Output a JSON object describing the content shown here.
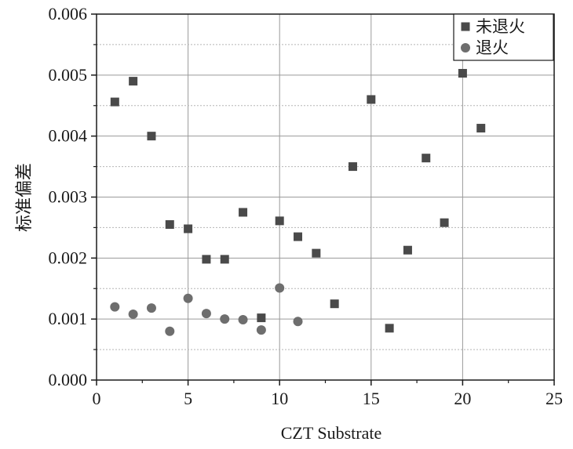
{
  "chart_data": {
    "type": "scatter",
    "title": "",
    "xlabel": "CZT Substrate",
    "ylabel": "标准偏差",
    "xlim": [
      0,
      25
    ],
    "ylim": [
      0,
      0.006
    ],
    "x_ticks": [
      0,
      5,
      10,
      15,
      20,
      25
    ],
    "x_tick_labels": [
      "0",
      "5",
      "10",
      "15",
      "20",
      "25"
    ],
    "y_ticks": [
      0,
      0.001,
      0.002,
      0.003,
      0.004,
      0.005,
      0.006
    ],
    "y_tick_labels": [
      "0.000",
      "0.001",
      "0.002",
      "0.003",
      "0.004",
      "0.005",
      "0.006"
    ],
    "grid": {
      "major": true,
      "minor_y_dotted": true
    },
    "legend_position": "top-right",
    "series": [
      {
        "name": "未退火",
        "marker": "square",
        "color": "#4a4a4a",
        "x": [
          1,
          2,
          3,
          4,
          5,
          6,
          7,
          8,
          9,
          10,
          11,
          12,
          13,
          14,
          15,
          16,
          17,
          18,
          19,
          20,
          21
        ],
        "y": [
          0.00456,
          0.0049,
          0.004,
          0.00255,
          0.00248,
          0.00198,
          0.00198,
          0.00275,
          0.00102,
          0.00261,
          0.00235,
          0.00208,
          0.00125,
          0.0035,
          0.0046,
          0.00085,
          0.00213,
          0.00364,
          0.00258,
          0.00503,
          0.00413
        ]
      },
      {
        "name": "退火",
        "marker": "circle",
        "color": "#6e6e6e",
        "x": [
          1,
          2,
          3,
          4,
          5,
          6,
          7,
          8,
          9,
          10,
          11
        ],
        "y": [
          0.0012,
          0.00108,
          0.00118,
          0.0008,
          0.00134,
          0.00109,
          0.001,
          0.00099,
          0.00082,
          0.00151,
          0.00096
        ]
      }
    ]
  }
}
